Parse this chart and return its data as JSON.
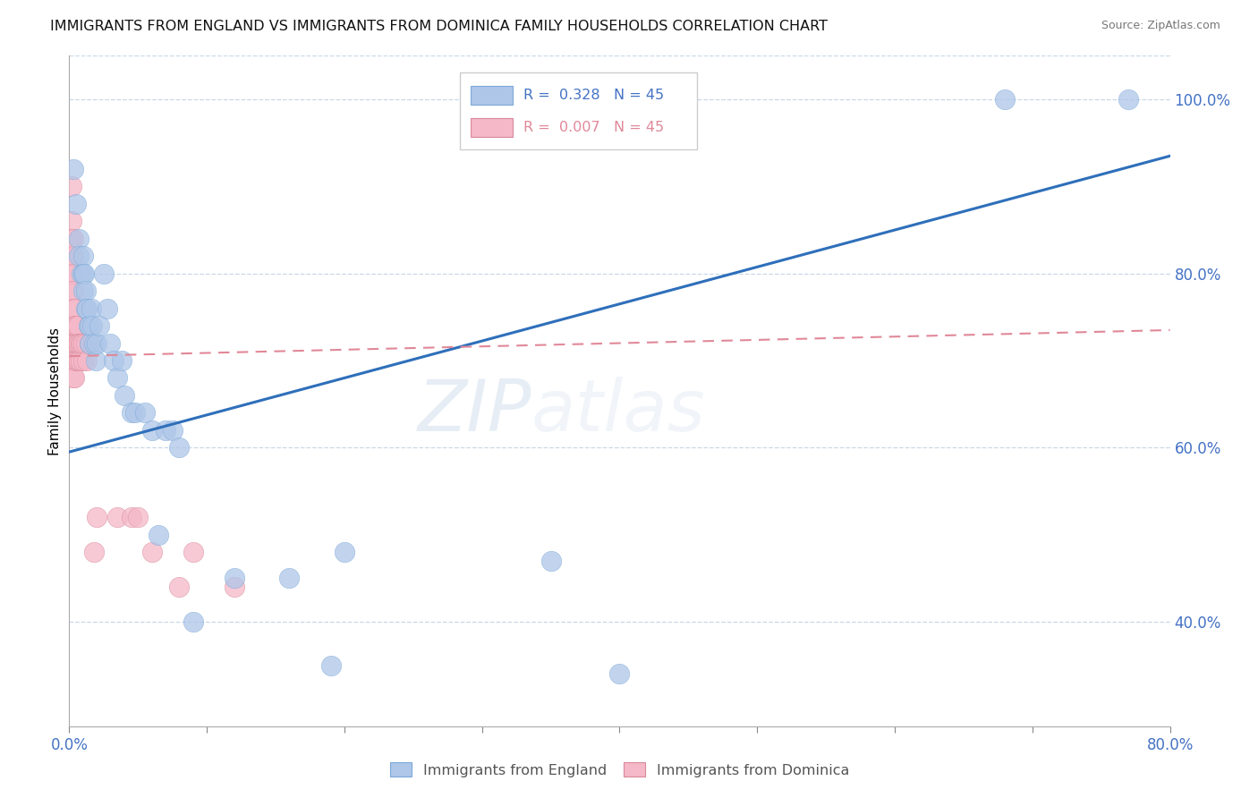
{
  "title": "IMMIGRANTS FROM ENGLAND VS IMMIGRANTS FROM DOMINICA FAMILY HOUSEHOLDS CORRELATION CHART",
  "source": "Source: ZipAtlas.com",
  "ylabel": "Family Households",
  "legend_bottom": [
    "Immigrants from England",
    "Immigrants from Dominica"
  ],
  "blue_scatter": [
    [
      0.003,
      0.92
    ],
    [
      0.005,
      0.88
    ],
    [
      0.007,
      0.84
    ],
    [
      0.007,
      0.82
    ],
    [
      0.009,
      0.8
    ],
    [
      0.01,
      0.82
    ],
    [
      0.01,
      0.8
    ],
    [
      0.01,
      0.78
    ],
    [
      0.011,
      0.8
    ],
    [
      0.012,
      0.78
    ],
    [
      0.012,
      0.76
    ],
    [
      0.013,
      0.76
    ],
    [
      0.014,
      0.74
    ],
    [
      0.015,
      0.74
    ],
    [
      0.015,
      0.72
    ],
    [
      0.016,
      0.76
    ],
    [
      0.017,
      0.74
    ],
    [
      0.018,
      0.72
    ],
    [
      0.019,
      0.7
    ],
    [
      0.02,
      0.72
    ],
    [
      0.022,
      0.74
    ],
    [
      0.025,
      0.8
    ],
    [
      0.028,
      0.76
    ],
    [
      0.03,
      0.72
    ],
    [
      0.032,
      0.7
    ],
    [
      0.035,
      0.68
    ],
    [
      0.038,
      0.7
    ],
    [
      0.04,
      0.66
    ],
    [
      0.045,
      0.64
    ],
    [
      0.048,
      0.64
    ],
    [
      0.055,
      0.64
    ],
    [
      0.06,
      0.62
    ],
    [
      0.065,
      0.5
    ],
    [
      0.07,
      0.62
    ],
    [
      0.075,
      0.62
    ],
    [
      0.08,
      0.6
    ],
    [
      0.09,
      0.4
    ],
    [
      0.12,
      0.45
    ],
    [
      0.16,
      0.45
    ],
    [
      0.19,
      0.35
    ],
    [
      0.2,
      0.48
    ],
    [
      0.35,
      0.47
    ],
    [
      0.68,
      1.0
    ],
    [
      0.77,
      1.0
    ],
    [
      0.4,
      0.34
    ]
  ],
  "pink_scatter": [
    [
      0.002,
      0.9
    ],
    [
      0.002,
      0.86
    ],
    [
      0.002,
      0.84
    ],
    [
      0.002,
      0.82
    ],
    [
      0.002,
      0.8
    ],
    [
      0.002,
      0.78
    ],
    [
      0.003,
      0.84
    ],
    [
      0.003,
      0.82
    ],
    [
      0.003,
      0.8
    ],
    [
      0.003,
      0.78
    ],
    [
      0.003,
      0.76
    ],
    [
      0.003,
      0.74
    ],
    [
      0.003,
      0.72
    ],
    [
      0.003,
      0.7
    ],
    [
      0.003,
      0.68
    ],
    [
      0.004,
      0.76
    ],
    [
      0.004,
      0.74
    ],
    [
      0.004,
      0.72
    ],
    [
      0.004,
      0.7
    ],
    [
      0.004,
      0.68
    ],
    [
      0.005,
      0.74
    ],
    [
      0.005,
      0.72
    ],
    [
      0.005,
      0.7
    ],
    [
      0.006,
      0.74
    ],
    [
      0.006,
      0.72
    ],
    [
      0.006,
      0.7
    ],
    [
      0.007,
      0.72
    ],
    [
      0.007,
      0.7
    ],
    [
      0.008,
      0.72
    ],
    [
      0.008,
      0.7
    ],
    [
      0.009,
      0.72
    ],
    [
      0.01,
      0.7
    ],
    [
      0.01,
      0.72
    ],
    [
      0.012,
      0.72
    ],
    [
      0.013,
      0.7
    ],
    [
      0.015,
      0.72
    ],
    [
      0.018,
      0.48
    ],
    [
      0.02,
      0.52
    ],
    [
      0.035,
      0.52
    ],
    [
      0.045,
      0.52
    ],
    [
      0.05,
      0.52
    ],
    [
      0.06,
      0.48
    ],
    [
      0.08,
      0.44
    ],
    [
      0.09,
      0.48
    ],
    [
      0.12,
      0.44
    ]
  ],
  "blue_line": [
    [
      0.0,
      0.595
    ],
    [
      0.8,
      0.935
    ]
  ],
  "pink_line": [
    [
      0.0,
      0.705
    ],
    [
      0.8,
      0.735
    ]
  ],
  "title_fontsize": 11.5,
  "source_fontsize": 9,
  "axis_color": "#4472c4",
  "scatter_blue": "#aec6e8",
  "scatter_pink": "#f4b8c8",
  "line_blue": "#2e6fba",
  "line_pink": "#e08898",
  "grid_color": "#c8d8e8",
  "watermark_zip": "ZIP",
  "watermark_atlas": "atlas",
  "xlim": [
    0.0,
    0.8
  ],
  "ylim": [
    0.28,
    1.05
  ],
  "xticks": [
    0.0,
    0.1,
    0.2,
    0.3,
    0.4,
    0.5,
    0.6,
    0.7,
    0.8
  ],
  "yticks_right": [
    0.4,
    0.6,
    0.8,
    1.0
  ],
  "ytick_labels_right": [
    "40.0%",
    "60.0%",
    "80.0%",
    "100.0%"
  ],
  "xtick_show_labels": [
    true,
    false,
    false,
    false,
    false,
    false,
    false,
    false,
    true
  ],
  "xtick_label_vals": [
    "0.0%",
    "",
    "",
    "",
    "",
    "",
    "",
    "",
    "80.0%"
  ]
}
